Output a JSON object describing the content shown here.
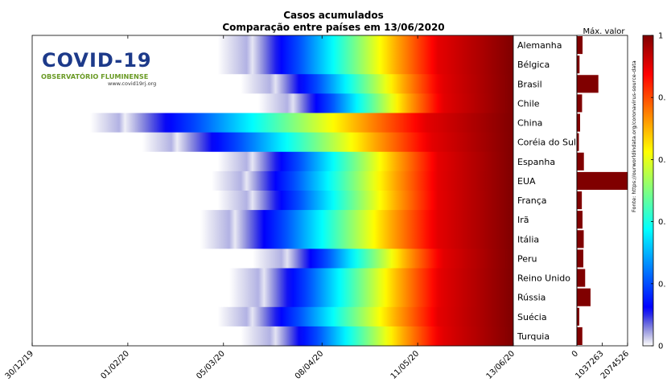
{
  "chart_data": {
    "type": "heatmap",
    "title": "Casos acumulados",
    "subtitle": "Comparação entre países em 13/06/2020",
    "logo": {
      "title": "COVID-19",
      "subtitle": "OBSERVATÓRIO FLUMINENSE",
      "url": "www.covid19rj.org"
    },
    "source_note": "Fonte: https://ourworldindata.org/coronavirus-source-data",
    "x_tick_labels": [
      "30/12/19",
      "01/02/20",
      "05/03/20",
      "08/04/20",
      "11/05/20",
      "13/06/20"
    ],
    "x_ticks_days_since_first": [
      0,
      33,
      66,
      100,
      133,
      166
    ],
    "countries": [
      "Alemanha",
      "Bélgica",
      "Brasil",
      "Chile",
      "China",
      "Coréia do Sul",
      "Espanha",
      "EUA",
      "França",
      "Irã",
      "Itália",
      "Peru",
      "Reino Unido",
      "Rússia",
      "Suécia",
      "Turquia"
    ],
    "first_case_day": [
      64,
      64,
      72,
      78,
      20,
      38,
      64,
      62,
      64,
      58,
      58,
      76,
      68,
      68,
      64,
      72
    ],
    "color_stops": [
      [
        0.0,
        75
      ],
      [
        0.2,
        92
      ],
      [
        0.35,
        102
      ],
      [
        0.5,
        112
      ],
      [
        0.7,
        125
      ],
      [
        0.9,
        140
      ],
      [
        1.0,
        166
      ]
    ],
    "max_value": {
      "label": "Máx. valor",
      "axis_ticks": [
        "0",
        "1037263",
        "2074526"
      ],
      "axis_max": 2074526,
      "values": [
        187000,
        60000,
        850000,
        167000,
        84000,
        12000,
        243000,
        2074526,
        157000,
        185000,
        236000,
        220000,
        296000,
        521000,
        50000,
        178000
      ]
    },
    "colorbar": {
      "tick_labels": [
        "0",
        "0.",
        "0.",
        "0.",
        "0.",
        "1"
      ],
      "tick_values": [
        0,
        0.2,
        0.4,
        0.6,
        0.8,
        1
      ]
    },
    "colors": {
      "zero": "#ffffff",
      "max": "#800000"
    }
  }
}
